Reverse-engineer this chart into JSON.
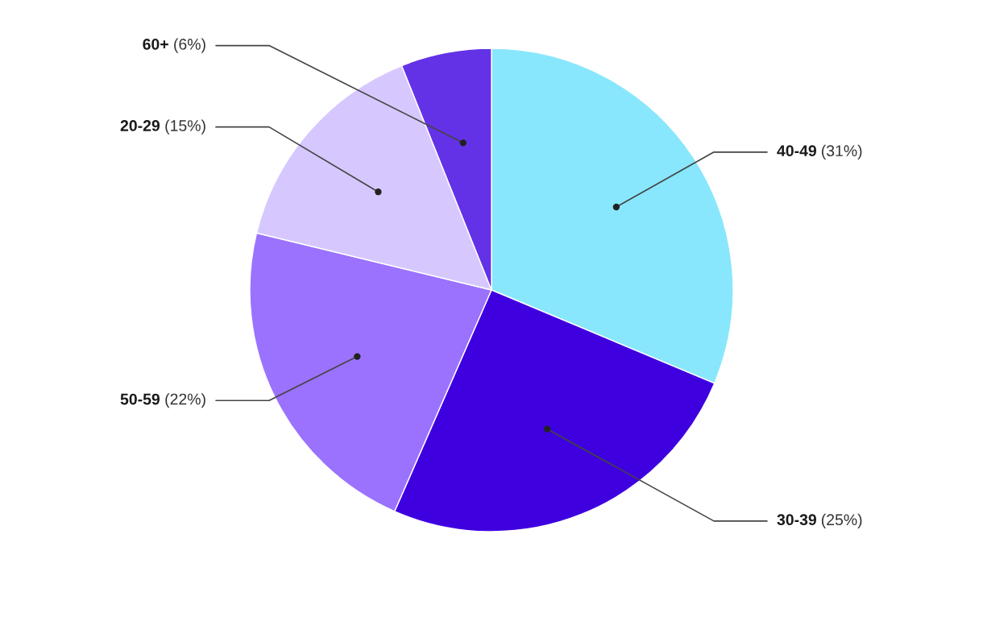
{
  "chart_data": {
    "type": "pie",
    "categories": [
      "40-49",
      "30-39",
      "50-59",
      "20-29",
      "60+"
    ],
    "values": [
      31,
      25,
      22,
      15,
      6
    ],
    "value_labels": [
      "(31%)",
      "(25%)",
      "(22%)",
      "(15%)",
      "(6%)"
    ],
    "colors": [
      "#88e7fc",
      "#3f00e0",
      "#9b72fe",
      "#d6c8ff",
      "#6432e6"
    ],
    "legend": false
  }
}
